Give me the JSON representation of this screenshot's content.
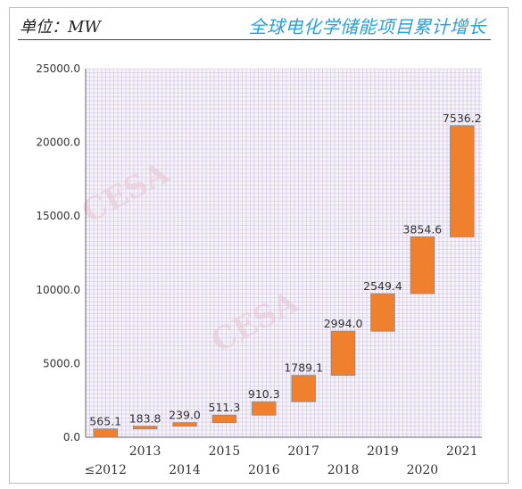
{
  "header": {
    "unit_label": "单位：MW",
    "title": "全球电化学储能项目累计增长"
  },
  "colors": {
    "bar": "#f07f2e",
    "title": "#2aa0d8",
    "grid": "#c9c0dc"
  },
  "watermark_text": "CESA",
  "chart_data": {
    "type": "waterfall",
    "title": "全球电化学储能项目累计增长",
    "ylabel": "单位：MW",
    "xlabel": "",
    "ylim": [
      0,
      25000
    ],
    "yticks": [
      "0.0",
      "5000.0",
      "10000.0",
      "15000.0",
      "20000.0",
      "25000.0"
    ],
    "grid": true,
    "categories": [
      "≤2012",
      "2013",
      "2014",
      "2015",
      "2016",
      "2017",
      "2018",
      "2019",
      "2020",
      "2021"
    ],
    "values": [
      565.1,
      183.8,
      239.0,
      511.3,
      910.3,
      1789.1,
      2994.0,
      2549.4,
      3854.6,
      7536.2
    ],
    "value_labels": [
      "565.1",
      "183.8",
      "239.0",
      "511.3",
      "910.3",
      "1789.1",
      "2994.0",
      "2549.4",
      "3854.6",
      "7536.2"
    ]
  }
}
